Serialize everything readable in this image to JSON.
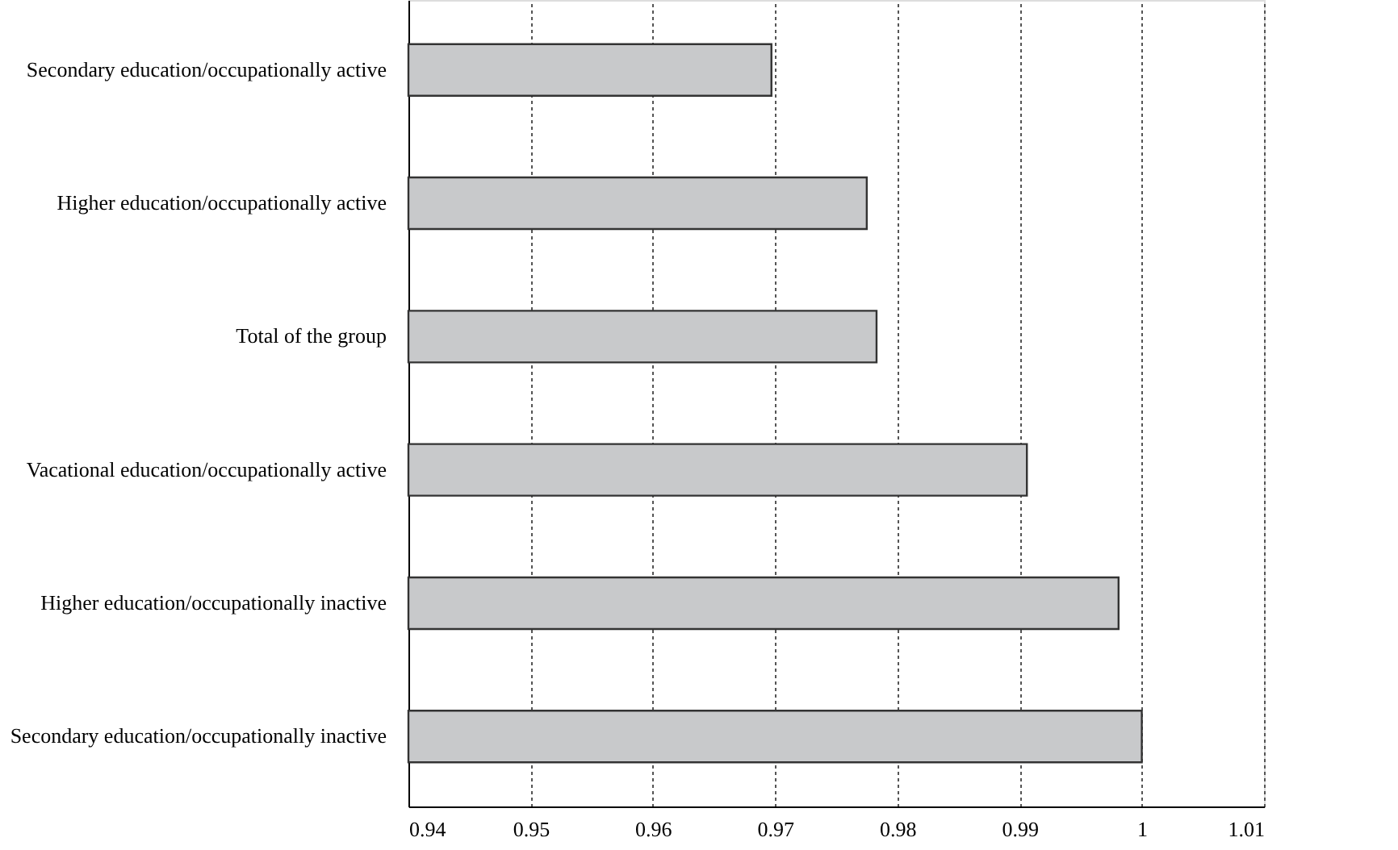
{
  "chart_data": {
    "type": "bar",
    "orientation": "horizontal",
    "categories": [
      "Secondary education/occupationally active",
      "Higher education/occupationally active",
      "Total of the group",
      "Vacational education/occupationally active",
      "Higher education/occupationally inactive",
      "Secondary education/occupationally inactive"
    ],
    "values": [
      0.9697,
      0.9775,
      0.9783,
      0.9906,
      0.9981,
      1.0
    ],
    "color": "#c8c9cb",
    "xlim": [
      0.94,
      1.01
    ],
    "xticks": [
      0.94,
      0.95,
      0.96,
      0.97,
      0.98,
      0.99,
      1,
      1.01
    ],
    "grid": "x"
  }
}
